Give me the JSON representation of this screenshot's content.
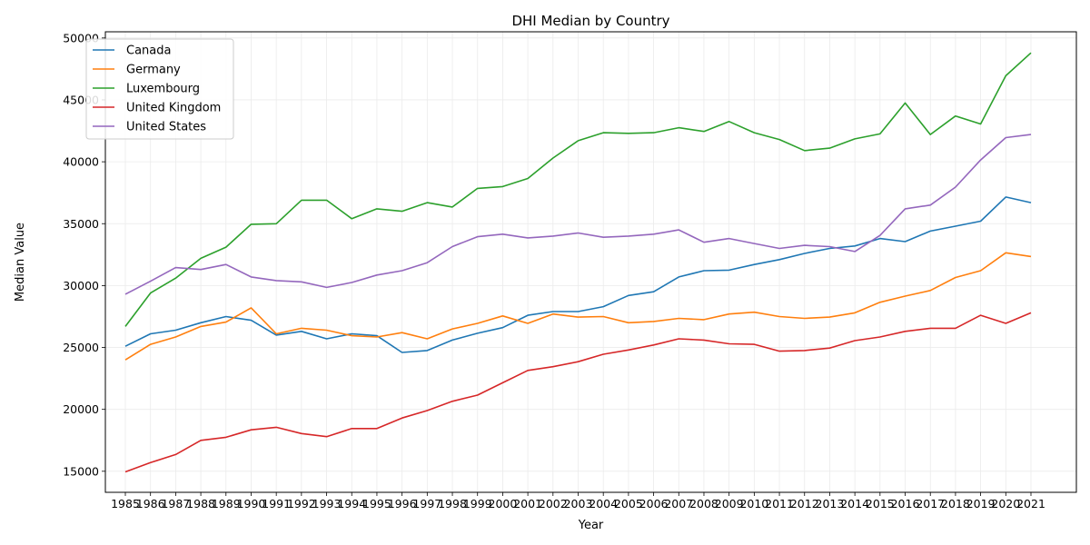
{
  "chart_data": {
    "type": "line",
    "title": "DHI Median by Country",
    "xlabel": "Year",
    "ylabel": "Median Value",
    "x": [
      "1985",
      "1986",
      "1987",
      "1988",
      "1989",
      "1990",
      "1991",
      "1992",
      "1993",
      "1994",
      "1995",
      "1996",
      "1997",
      "1998",
      "1999",
      "2000",
      "2001",
      "2002",
      "2003",
      "2004",
      "2005",
      "2006",
      "2007",
      "2008",
      "2009",
      "2010",
      "2011",
      "2012",
      "2013",
      "2014",
      "2015",
      "2016",
      "2017",
      "2018",
      "2019",
      "2020",
      "2021"
    ],
    "ylim": [
      13300,
      50500
    ],
    "yticks": [
      15000,
      20000,
      25000,
      30000,
      35000,
      40000,
      45000,
      50000
    ],
    "grid": true,
    "legend_position": "top-left",
    "series": [
      {
        "name": "Canada",
        "color": "#1f77b4",
        "values": [
          25100,
          26100,
          26400,
          27000,
          27500,
          27200,
          26000,
          26300,
          25700,
          26100,
          25950,
          24600,
          24750,
          25600,
          26150,
          26600,
          27600,
          27900,
          27900,
          28300,
          29200,
          29500,
          30700,
          31200,
          31250,
          31700,
          32100,
          32600,
          33000,
          33200,
          33800,
          33550,
          34400,
          34800,
          35200,
          37150,
          36700
        ]
      },
      {
        "name": "Germany",
        "color": "#ff7f0e",
        "values": [
          24000,
          25250,
          25850,
          26700,
          27050,
          28200,
          26100,
          26550,
          26400,
          25950,
          25850,
          26200,
          25700,
          26500,
          26950,
          27550,
          26950,
          27700,
          27450,
          27500,
          27000,
          27100,
          27350,
          27250,
          27700,
          27850,
          27500,
          27350,
          27450,
          27800,
          28650,
          29150,
          29600,
          30650,
          31200,
          32650,
          32350
        ]
      },
      {
        "name": "Luxembourg",
        "color": "#2ca02c",
        "values": [
          26700,
          29400,
          30600,
          32200,
          33100,
          34950,
          35000,
          36900,
          36900,
          35400,
          36200,
          36000,
          36700,
          36350,
          37850,
          38000,
          38650,
          40300,
          41700,
          42350,
          42300,
          42350,
          42750,
          42450,
          43250,
          42350,
          41800,
          40900,
          41100,
          41850,
          42250,
          44750,
          42200,
          43700,
          43050,
          46950,
          48800
        ]
      },
      {
        "name": "United Kingdom",
        "color": "#d62728",
        "values": [
          14950,
          15700,
          16350,
          17500,
          17750,
          18350,
          18550,
          18050,
          17800,
          18450,
          18450,
          19300,
          19900,
          20650,
          21150,
          22150,
          23150,
          23450,
          23850,
          24450,
          24800,
          25200,
          25700,
          25600,
          25300,
          25250,
          24700,
          24750,
          24950,
          25550,
          25850,
          26300,
          26550,
          26550,
          27600,
          26950,
          27800
        ]
      },
      {
        "name": "United States",
        "color": "#9467bd",
        "values": [
          29300,
          30350,
          31450,
          31300,
          31700,
          30700,
          30400,
          30300,
          29850,
          30250,
          30850,
          31200,
          31850,
          33150,
          33950,
          34150,
          33850,
          34000,
          34250,
          33900,
          34000,
          34150,
          34500,
          33500,
          33800,
          33400,
          33000,
          33250,
          33150,
          32750,
          34050,
          36200,
          36500,
          37950,
          40150,
          41950,
          42200
        ]
      }
    ]
  }
}
